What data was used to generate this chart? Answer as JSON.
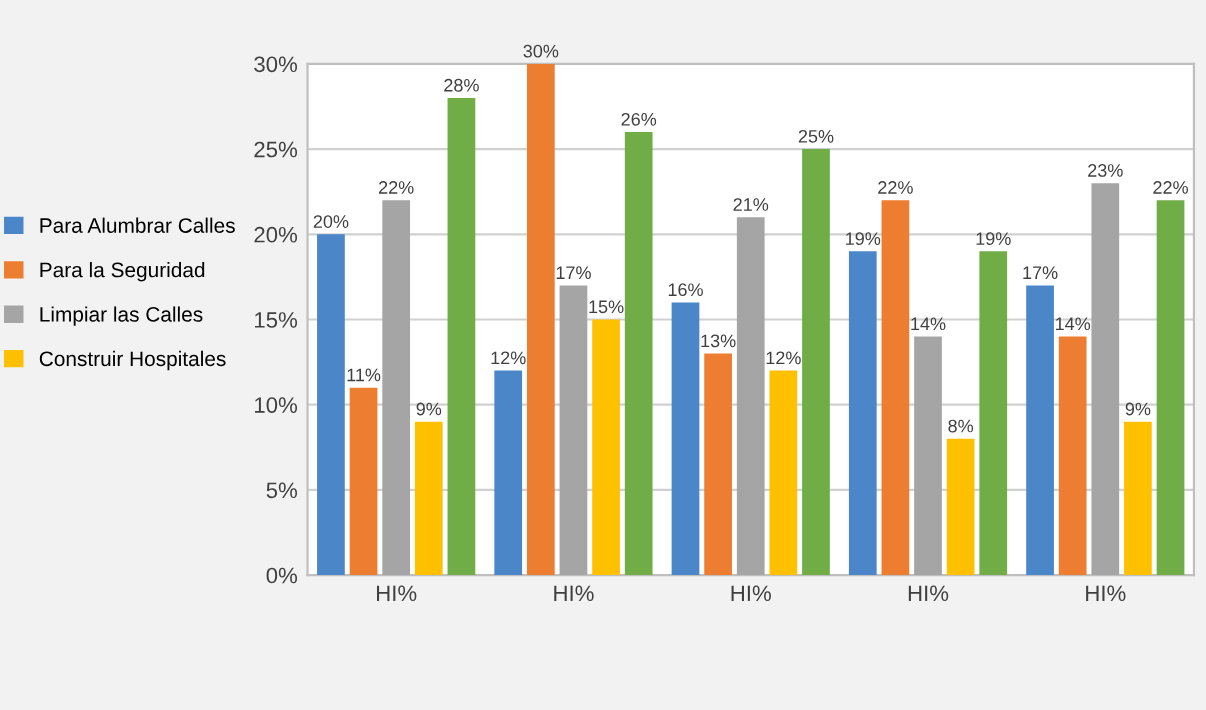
{
  "chart_data": {
    "type": "bar",
    "categories": [
      "HI%",
      "HI%",
      "HI%",
      "HI%",
      "HI%"
    ],
    "series": [
      {
        "name": "Para Alumbrar Calles",
        "color": "#4a86c8",
        "values": [
          20,
          12,
          16,
          19,
          17
        ],
        "value_labels": [
          "20%",
          "12%",
          "16%",
          "19%",
          "17%"
        ]
      },
      {
        "name": "Para la Seguridad",
        "color": "#ed7d31",
        "values": [
          11,
          30,
          13,
          22,
          14
        ],
        "value_labels": [
          "11%",
          "30%",
          "13%",
          "22%",
          "14%"
        ]
      },
      {
        "name": "Limpiar las Calles",
        "color": "#a5a5a5",
        "values": [
          22,
          17,
          21,
          14,
          23
        ],
        "value_labels": [
          "22%",
          "17%",
          "21%",
          "14%",
          "23%"
        ]
      },
      {
        "name": "Construir Hospitales",
        "color": "#ffc000",
        "values": [
          9,
          15,
          12,
          8,
          9
        ],
        "value_labels": [
          "9%",
          "15%",
          "12%",
          "8%",
          "9%"
        ]
      },
      {
        "color": "#70ad47",
        "values": [
          28,
          26,
          25,
          19,
          22
        ],
        "value_labels": [
          "28%",
          "26%",
          "25%",
          "19%",
          "22%"
        ]
      }
    ],
    "ylim": [
      0,
      30
    ],
    "yticks": [
      {
        "value": 0,
        "label": "0%"
      },
      {
        "value": 5,
        "label": "5%"
      },
      {
        "value": 10,
        "label": "10%"
      },
      {
        "value": 15,
        "label": "15%"
      },
      {
        "value": 20,
        "label": "20%"
      },
      {
        "value": 25,
        "label": "25%"
      },
      {
        "value": 30,
        "label": "30%"
      }
    ],
    "grid": "y",
    "legend": "left"
  }
}
